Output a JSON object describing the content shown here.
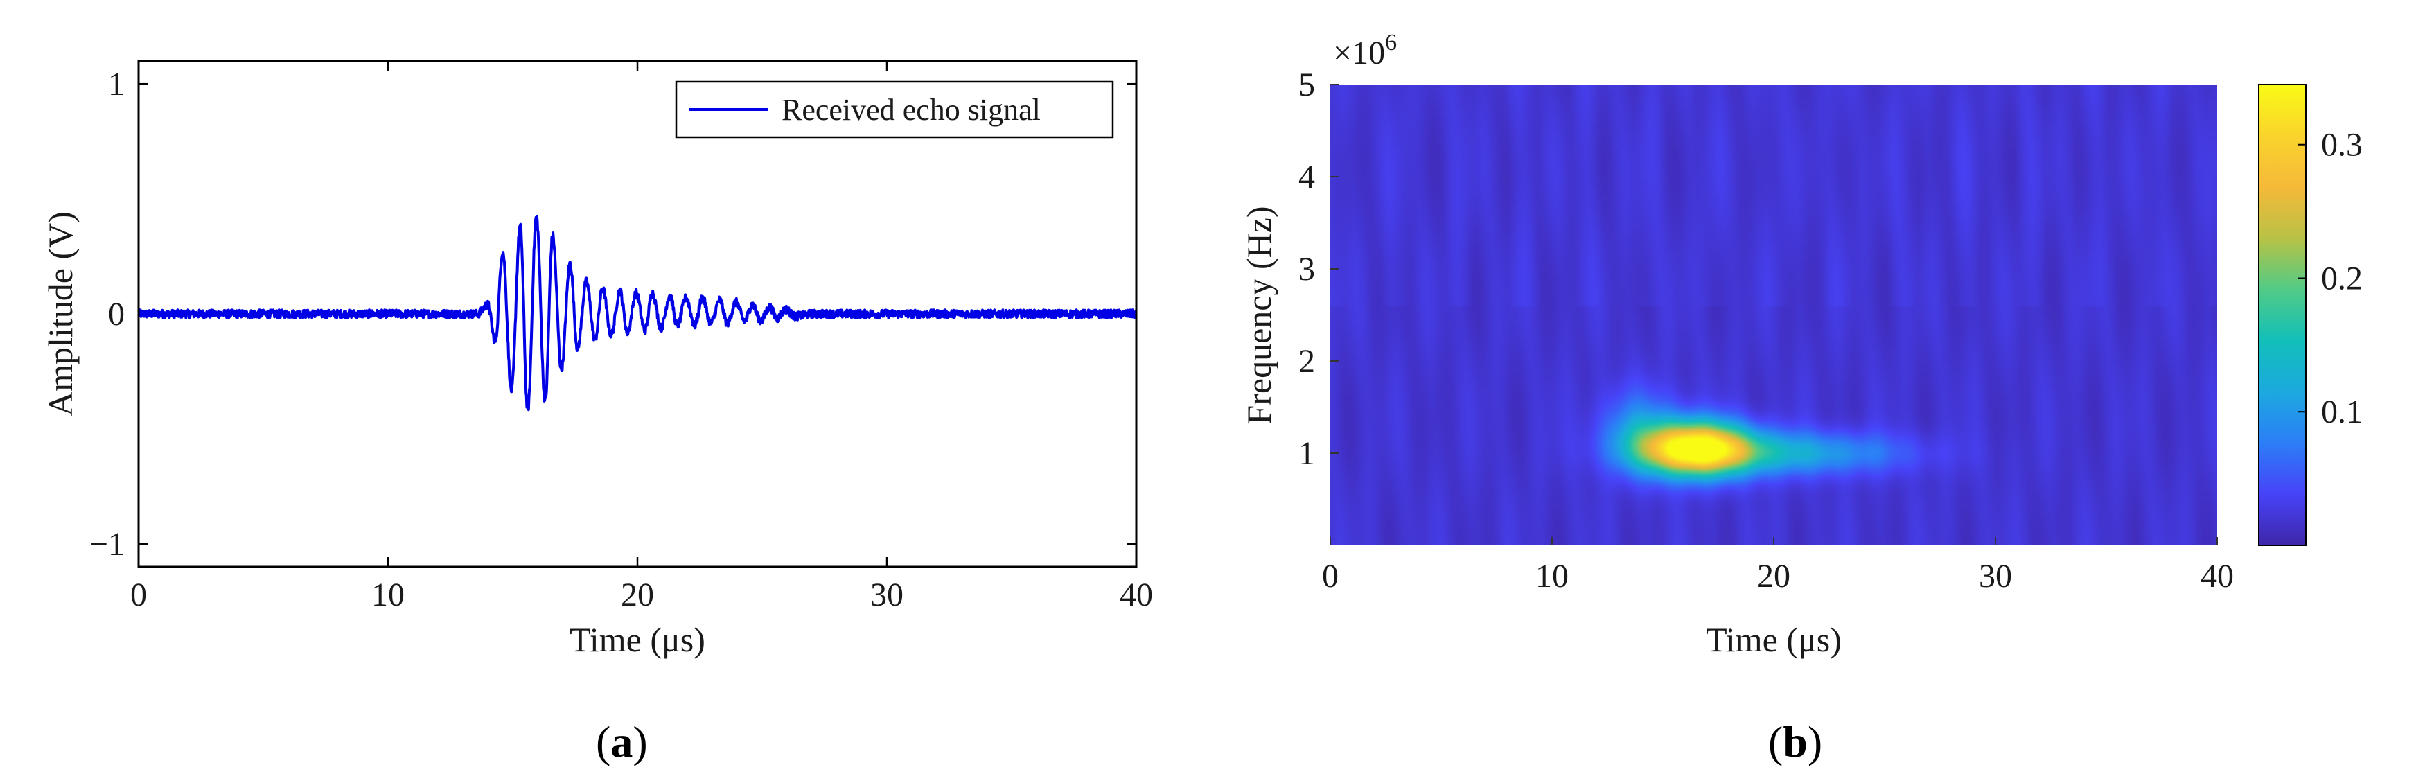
{
  "chart_data": [
    {
      "type": "line",
      "panel_label": "(a)",
      "panel_letter": "a",
      "xlabel": "Time (μs)",
      "ylabel": "Amplitude (V)",
      "xlim": [
        0,
        40
      ],
      "ylim": [
        -1.1,
        1.1
      ],
      "xticks": [
        0,
        10,
        20,
        30,
        40
      ],
      "xtick_labels": [
        "0",
        "10",
        "20",
        "30",
        "40"
      ],
      "yticks": [
        -1,
        0,
        1
      ],
      "ytick_labels": [
        "−1",
        "0",
        "1"
      ],
      "legend": {
        "position": "top-right"
      },
      "series": [
        {
          "name": "Received echo signal",
          "color": "#0000e6",
          "x": [
            0,
            13.6,
            14.0,
            14.3,
            14.6,
            14.95,
            15.3,
            15.6,
            15.95,
            16.3,
            16.6,
            16.95,
            17.3,
            17.6,
            17.95,
            18.3,
            18.6,
            18.95,
            19.3,
            19.6,
            19.95,
            20.3,
            20.6,
            20.95,
            21.3,
            21.6,
            21.95,
            22.3,
            22.6,
            22.95,
            23.3,
            23.6,
            23.95,
            24.3,
            24.6,
            24.95,
            25.3,
            25.6,
            25.95,
            26.3,
            27.0,
            40
          ],
          "y": [
            0,
            0,
            0.04,
            -0.12,
            0.27,
            -0.33,
            0.38,
            -0.42,
            0.42,
            -0.38,
            0.34,
            -0.24,
            0.22,
            -0.15,
            0.14,
            -0.11,
            0.11,
            -0.09,
            0.1,
            -0.08,
            0.09,
            -0.07,
            0.09,
            -0.06,
            0.08,
            -0.05,
            0.07,
            -0.05,
            0.07,
            -0.04,
            0.06,
            -0.04,
            0.05,
            -0.03,
            0.04,
            -0.03,
            0.03,
            -0.02,
            0.02,
            -0.01,
            0,
            0
          ]
        }
      ]
    },
    {
      "type": "heatmap",
      "panel_label": "(b)",
      "panel_letter": "b",
      "xlabel": "Time (μs)",
      "ylabel": "Frequency (Hz)",
      "y_multiplier_label": "×10",
      "y_multiplier_exponent": "6",
      "xlim": [
        0,
        40
      ],
      "ylim": [
        0,
        5
      ],
      "xticks": [
        0,
        10,
        20,
        30,
        40
      ],
      "xtick_labels": [
        "0",
        "10",
        "20",
        "30",
        "40"
      ],
      "yticks": [
        1,
        2,
        3,
        4,
        5
      ],
      "ytick_labels": [
        "1",
        "2",
        "3",
        "4",
        "5"
      ],
      "colorbar": {
        "range": [
          0,
          0.345
        ],
        "ticks": [
          0.1,
          0.2,
          0.3
        ],
        "tick_labels": [
          "0.1",
          "0.2",
          "0.3"
        ],
        "colormap": "parula",
        "stops": [
          "#3e26a8",
          "#4743f8",
          "#2c7ef7",
          "#1ca9df",
          "#12bfb9",
          "#52cb86",
          "#b8c245",
          "#f6b939",
          "#f9d42c",
          "#f9fb15"
        ]
      },
      "background_value": 0.02,
      "hotspots": [
        {
          "time": 16.5,
          "freq": 1.05,
          "value": 0.34,
          "sigma_t": 1.7,
          "sigma_f": 0.2
        },
        {
          "time": 20.5,
          "freq": 1.0,
          "value": 0.1,
          "sigma_t": 3.6,
          "sigma_f": 0.16
        },
        {
          "time": 14.0,
          "freq": 1.25,
          "value": 0.07,
          "sigma_t": 1.3,
          "sigma_f": 0.3
        }
      ]
    }
  ]
}
